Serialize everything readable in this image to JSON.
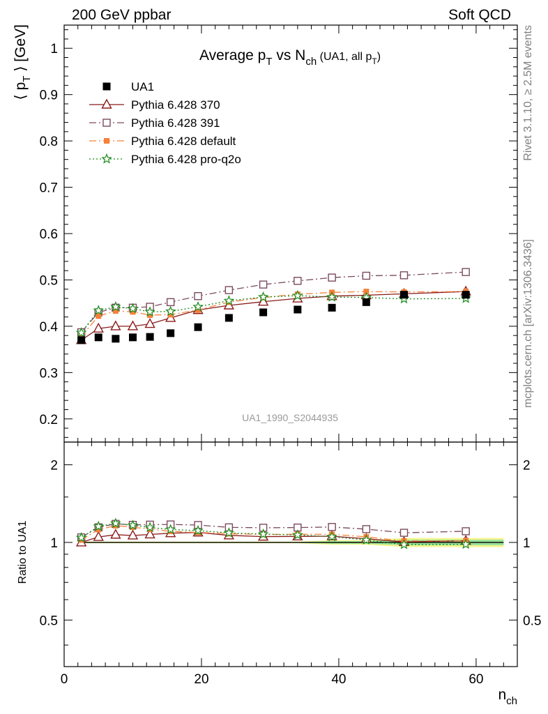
{
  "header": {
    "left": "200 GeV ppbar",
    "right": "Soft QCD"
  },
  "side": {
    "rivet": "Rivet 3.1.10, ≥ 2.5M events",
    "mcplots": "mcplots.cern.ch [arXiv:1306.3436]"
  },
  "chart_data": [
    {
      "type": "line",
      "title": {
        "main": "Average p",
        "sub1": "T",
        "mid": " vs N",
        "sub2": "ch",
        "tail": " (UA1, all p",
        "sub3": "T",
        "close": ")"
      },
      "ylabel": {
        "pre": "⟨ p",
        "sub": "T",
        "post": " ⟩ [GeV]"
      },
      "watermark": "UA1_1990_S2044935",
      "xlim": [
        0,
        66
      ],
      "ylim": [
        0.15,
        1.05
      ],
      "yticks": [
        0.2,
        0.3,
        0.4,
        0.5,
        0.6,
        0.7,
        0.8,
        0.9,
        1
      ],
      "ytick_labels": [
        "0.2",
        "0.3",
        "0.4",
        "0.5",
        "0.6",
        "0.7",
        "0.8",
        "0.9",
        "1"
      ],
      "legend_position": "top-left",
      "x": [
        2.5,
        5,
        7.5,
        10,
        12.5,
        15.5,
        19.5,
        24,
        29,
        34,
        39,
        44,
        49.5,
        58.5
      ],
      "series": [
        {
          "name": "UA1",
          "marker": "square-filled",
          "color": "#000000",
          "values": [
            0.37,
            0.376,
            0.373,
            0.376,
            0.377,
            0.385,
            0.398,
            0.418,
            0.43,
            0.436,
            0.44,
            0.452,
            0.468,
            0.468
          ]
        },
        {
          "name": "Pythia 6.428 370",
          "marker": "triangle-open",
          "color": "#8b1a1a",
          "dash": "",
          "values": [
            0.37,
            0.395,
            0.4,
            0.4,
            0.405,
            0.418,
            0.435,
            0.445,
            0.453,
            0.46,
            0.465,
            0.467,
            0.47,
            0.475
          ]
        },
        {
          "name": "Pythia 6.428 391",
          "marker": "square-open",
          "color": "#7a4a5e",
          "dash": "10,4,2,4",
          "values": [
            0.387,
            0.43,
            0.44,
            0.44,
            0.442,
            0.452,
            0.465,
            0.478,
            0.49,
            0.498,
            0.505,
            0.509,
            0.51,
            0.517
          ]
        },
        {
          "name": "Pythia 6.428 default",
          "marker": "square-filled-small",
          "color": "#f5813a",
          "dash": "10,4,2,4",
          "values": [
            0.378,
            0.422,
            0.433,
            0.431,
            0.424,
            0.425,
            0.435,
            0.452,
            0.462,
            0.469,
            0.473,
            0.475,
            0.474,
            0.475
          ]
        },
        {
          "name": "Pythia 6.428 pro-q2o",
          "marker": "star-open",
          "color": "#1a8a1a",
          "dash": "2,3",
          "values": [
            0.386,
            0.434,
            0.442,
            0.438,
            0.431,
            0.432,
            0.442,
            0.455,
            0.463,
            0.466,
            0.463,
            0.462,
            0.459,
            0.46
          ]
        }
      ]
    },
    {
      "type": "line",
      "ylabel": "Ratio to UA1",
      "xlabel": {
        "main": "n",
        "sub": "ch"
      },
      "xlim": [
        0,
        66
      ],
      "ylim": [
        0.33,
        2.45
      ],
      "yscale": "log",
      "yticks": [
        0.5,
        1,
        2
      ],
      "ytick_labels": [
        "0.5",
        "1",
        "2"
      ],
      "xticks": [
        0,
        20,
        40,
        60
      ],
      "xtick_labels": [
        "0",
        "20",
        "40",
        "60"
      ],
      "reference": 1,
      "x": [
        2.5,
        5,
        7.5,
        10,
        12.5,
        15.5,
        19.5,
        24,
        29,
        34,
        39,
        44,
        49.5,
        58.5
      ],
      "series": [
        {
          "name": "Pythia 6.428 370",
          "marker": "triangle-open",
          "color": "#8b1a1a",
          "dash": "",
          "values": [
            1.0,
            1.05,
            1.072,
            1.064,
            1.074,
            1.086,
            1.093,
            1.065,
            1.053,
            1.055,
            1.057,
            1.033,
            1.004,
            1.015
          ]
        },
        {
          "name": "Pythia 6.428 391",
          "marker": "square-open",
          "color": "#7a4a5e",
          "dash": "10,4,2,4",
          "values": [
            1.046,
            1.144,
            1.18,
            1.17,
            1.172,
            1.174,
            1.168,
            1.144,
            1.14,
            1.142,
            1.148,
            1.126,
            1.09,
            1.105
          ]
        },
        {
          "name": "Pythia 6.428 default",
          "marker": "square-filled-small",
          "color": "#f5813a",
          "dash": "10,4,2,4",
          "values": [
            1.022,
            1.122,
            1.161,
            1.146,
            1.125,
            1.104,
            1.093,
            1.081,
            1.074,
            1.076,
            1.075,
            1.051,
            1.013,
            1.015
          ]
        },
        {
          "name": "Pythia 6.428 pro-q2o",
          "marker": "star-open",
          "color": "#1a8a1a",
          "dash": "2,3",
          "values": [
            1.043,
            1.154,
            1.185,
            1.165,
            1.143,
            1.122,
            1.111,
            1.089,
            1.077,
            1.069,
            1.052,
            1.022,
            0.981,
            0.983
          ]
        }
      ]
    }
  ]
}
